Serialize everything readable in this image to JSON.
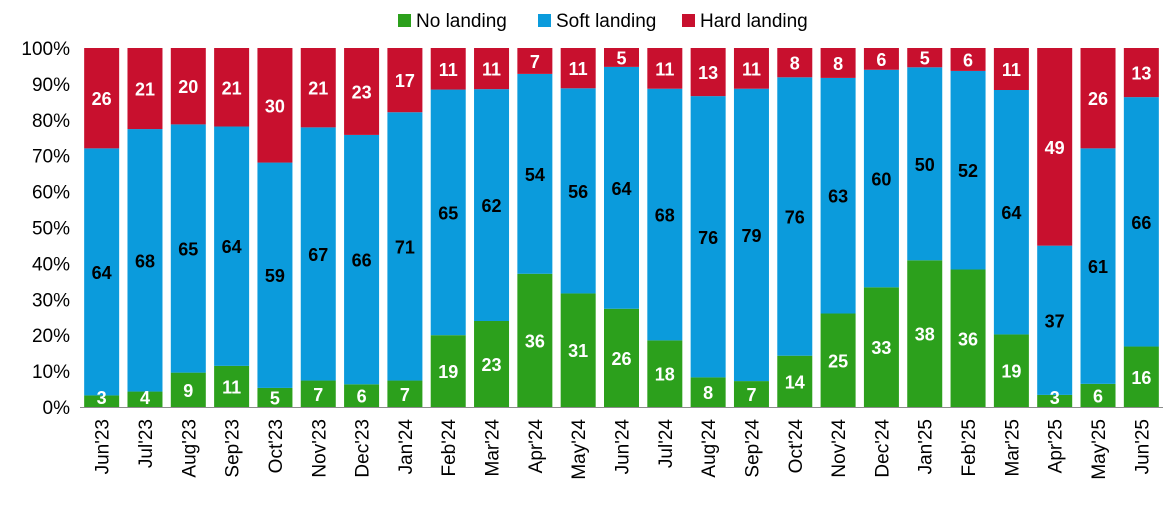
{
  "chart_data": {
    "type": "bar",
    "stacked": true,
    "title": "",
    "xlabel": "",
    "ylabel": "",
    "ylim": [
      0,
      100
    ],
    "y_tick_labels": [
      "0%",
      "10%",
      "20%",
      "30%",
      "40%",
      "50%",
      "60%",
      "70%",
      "80%",
      "90%",
      "100%"
    ],
    "legend_position": "top",
    "grid": false,
    "categories": [
      "Jun'23",
      "Jul'23",
      "Aug'23",
      "Sep'23",
      "Oct'23",
      "Nov'23",
      "Dec'23",
      "Jan'24",
      "Feb'24",
      "Mar'24",
      "Apr'24",
      "May'24",
      "Jun'24",
      "Jul'24",
      "Aug'24",
      "Sep'24",
      "Oct'24",
      "Nov'24",
      "Dec'24",
      "Jan'25",
      "Feb'25",
      "Mar'25",
      "Apr'25",
      "May'25",
      "Jun'25"
    ],
    "series": [
      {
        "name": "No landing",
        "color": "#2ca01c",
        "label_color": "#ffffff",
        "values": [
          3,
          4,
          9,
          11,
          5,
          7,
          6,
          7,
          19,
          23,
          36,
          31,
          26,
          18,
          8,
          7,
          14,
          25,
          33,
          38,
          36,
          19,
          3,
          6,
          16
        ]
      },
      {
        "name": "Soft landing",
        "color": "#0b9bdc",
        "label_color": "#000000",
        "values": [
          64,
          68,
          65,
          64,
          59,
          67,
          66,
          71,
          65,
          62,
          54,
          56,
          64,
          68,
          76,
          79,
          76,
          63,
          60,
          50,
          52,
          64,
          37,
          61,
          66
        ]
      },
      {
        "name": "Hard landing",
        "color": "#c8102e",
        "label_color": "#ffffff",
        "values": [
          26,
          21,
          20,
          21,
          30,
          21,
          23,
          17,
          11,
          11,
          7,
          11,
          5,
          11,
          13,
          11,
          8,
          8,
          6,
          5,
          6,
          11,
          49,
          26,
          13
        ]
      }
    ]
  }
}
